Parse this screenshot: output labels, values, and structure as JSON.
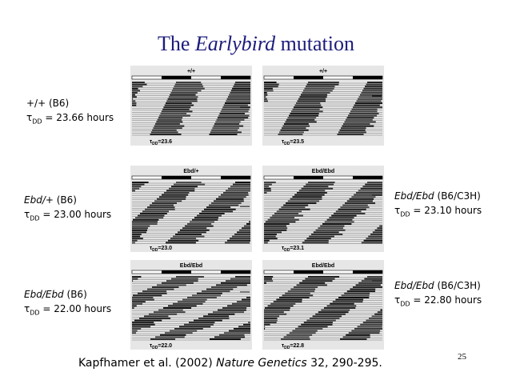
{
  "title": {
    "before": "The ",
    "italic": "Earlybird",
    "after": " mutation"
  },
  "labels": [
    {
      "genotype": "+/+",
      "strain": "(B6)",
      "tau": "τ",
      "tau_sub": "DD",
      "period": "= 23.66 hours"
    },
    {
      "genotype": "Ebd/+",
      "strain": "(B6)",
      "tau": "τ",
      "tau_sub": "DD",
      "period": "= 23.00 hours"
    },
    {
      "genotype": "Ebd/Ebd",
      "strain": "(B6)",
      "tau": "τ",
      "tau_sub": "DD",
      "period": "= 22.00 hours"
    },
    {
      "genotype": "Ebd/Ebd",
      "strain": "(B6/C3H)",
      "tau": "τ",
      "tau_sub": "DD",
      "period": "= 23.10 hours"
    },
    {
      "genotype": "Ebd/Ebd",
      "strain": "(B6/C3H)",
      "tau": "τ",
      "tau_sub": "DD",
      "period": "= 22.80 hours"
    }
  ],
  "panels": [
    {
      "header": "+/+",
      "tau": "τ",
      "tau_sub": "DD",
      "value": "=23.6"
    },
    {
      "header": "+/+",
      "tau": "τ",
      "tau_sub": "DD",
      "value": "=23.5"
    },
    {
      "header": "Ebd/+",
      "tau": "τ",
      "tau_sub": "DD",
      "value": "=23.0"
    },
    {
      "header": "Ebd/Ebd",
      "tau": "τ",
      "tau_sub": "DD",
      "value": "=23.1"
    },
    {
      "header": "Ebd/Ebd",
      "tau": "τ",
      "tau_sub": "DD",
      "value": "=22.0"
    },
    {
      "header": "Ebd/Ebd",
      "tau": "τ",
      "tau_sub": "DD",
      "value": "=22.8"
    }
  ],
  "citation": {
    "authors": "Kapfhamer et al. (2002) ",
    "journal": "Nature Genetics",
    "rest": " 32, 290-295."
  },
  "page_number": "25"
}
